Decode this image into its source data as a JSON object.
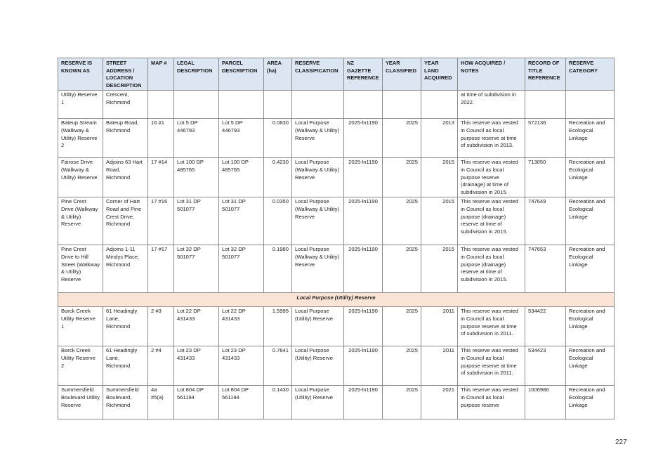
{
  "table": {
    "headers": [
      "RESERVE IS KNOWN AS",
      "STREET ADDRESS / LOCATION DESCRIPTION",
      "MAP #",
      "LEGAL DESCRIPTION",
      "PARCEL DESCRIPTION",
      "AREA (ha)",
      "RESERVE CLASSIFICATION",
      "NZ GAZETTE REFERENCE",
      "YEAR CLASSIFIED",
      "YEAR LAND ACQUIRED",
      "HOW ACQUIRED / NOTES",
      "RECORD OF TITLE REFERENCE",
      "RESERVE CATEGORY"
    ],
    "rows_top": [
      {
        "known_as": "Utility) Reserve 1",
        "address": "Crescent, Richmond",
        "map": "",
        "legal": "",
        "parcel": "",
        "area": "",
        "classification": "",
        "gazette": "",
        "year_classified": "",
        "year_acquired": "",
        "notes": "at time of subdivision in 2022.",
        "title_ref": "",
        "category": ""
      },
      {
        "known_as": "Bateup Stream (Walkway & Utility) Reserve 2",
        "address": "Bateup Road, Richmond",
        "map": "16 #1",
        "legal": "Lot 5 DP 446793",
        "parcel": "Lot 5 DP 446793",
        "area": "0.0830",
        "classification": "Local Purpose (Walkway & Utility) Reserve",
        "gazette": "2025-ln1190",
        "year_classified": "2025",
        "year_acquired": "2013",
        "notes": "This reserve was vested in Council as local purpose reserve at time of subdivision in 2013.",
        "title_ref": "572136",
        "category": "Recreation and Ecological Linkage"
      },
      {
        "known_as": "Fairose Drive (Walkway & Utility) Reserve",
        "address": "Adjoins 63 Hart Road, Richmond",
        "map": "17 #14",
        "legal": "Lot 100 DP 485765",
        "parcel": "Lot 100 DP 485765",
        "area": "0.4230",
        "classification": "Local Purpose (Walkway & Utility) Reserve",
        "gazette": "2025-ln1190",
        "year_classified": "2025",
        "year_acquired": "2015",
        "notes": "This reserve was vested in Council as local purpose reserve (drainage) at time of subdivision in 2015.",
        "title_ref": "713050",
        "category": "Recreation and Ecological Linkage"
      },
      {
        "known_as": "Pine Crest Drive (Walkway & Utility) Reserve",
        "address": "Corner of Hart Road and Pine Crest Drive, Richmond",
        "map": "17 #16",
        "legal": "Lot 31 DP 501077",
        "parcel": "Lot 31 DP 501077",
        "area": "0.0350",
        "classification": "Local Purpose (Walkway & Utility) Reserve",
        "gazette": "2025-ln1190",
        "year_classified": "2025",
        "year_acquired": "2015",
        "notes": "This reserve was vested in Council as local purpose (drainage) reserve at time of subdivision in 2015.",
        "title_ref": "747649",
        "category": "Recreation and Ecological Linkage"
      },
      {
        "known_as": "Pine Crest Drive to Hill Street (Walkway & Utility) Reserve",
        "address": "Adjoins 1-11 Mindys Place, Richmond",
        "map": "17 #17",
        "legal": "Lot 32 DP 501077",
        "parcel": "Lot 32 DP 501077",
        "area": "0.1980",
        "classification": "Local Purpose (Walkway & Utility) Reserve",
        "gazette": "2025-ln1190",
        "year_classified": "2025",
        "year_acquired": "2015",
        "notes": "This reserve was vested in Council as local purpose (drainage) reserve at time of subdivision in 2015.",
        "title_ref": "747653",
        "category": "Recreation and Ecological Linkage"
      }
    ],
    "section_label": "Local Purpose (Utility) Reserve",
    "rows_bottom": [
      {
        "known_as": "Borck Creek Utility Reserve 1",
        "address": "61 Headingly Lane, Richmond",
        "map": "2 #3",
        "legal": "Lot 22 DP 431433",
        "parcel": "Lot 22 DP 431433",
        "area": "1.5995",
        "classification": "Local Purpose (Utility) Reserve",
        "gazette": "2025-ln1190",
        "year_classified": "2025",
        "year_acquired": "2011",
        "notes": "This reserve was vested in Council as local purpose reserve at time of subdivision in 2011.",
        "title_ref": "534422",
        "category": "Recreation and Ecological Linkage"
      },
      {
        "known_as": "Borck Creek Utility Reserve 2",
        "address": "61 Headingly Lane, Richmond",
        "map": "2 #4",
        "legal": "Lot 23 DP 431433",
        "parcel": "Lot 23 DP 431433",
        "area": "0.7641",
        "classification": "Local Purpose (Utility) Reserve",
        "gazette": "2025-ln1190",
        "year_classified": "2025",
        "year_acquired": "2011",
        "notes": "This reserve was vested in Council as local purpose reserve at time of subdivision in 2011.",
        "title_ref": "534423",
        "category": "Recreation and Ecological Linkage"
      },
      {
        "known_as": "Summersfield Boulevard Utility Reserve",
        "address": "Summersfield Boulevard, Richmond",
        "map": "4a #5(a)",
        "legal": "Lot 804 DP 561194",
        "parcel": "Lot 804 DP 561194",
        "area": "0.1430",
        "classification": "Local Purpose (Utility) Reserve",
        "gazette": "2025-ln1190",
        "year_classified": "2025",
        "year_acquired": "2021",
        "notes": "This reserve was vested in Council as local purpose reserve",
        "title_ref": "1006986",
        "category": "Recreation and Ecological Linkage"
      }
    ]
  },
  "colors": {
    "header_bg": "#dce6f2",
    "section_bg": "#fbe4d5",
    "border": "#8a8a8a"
  },
  "page_number": "227"
}
